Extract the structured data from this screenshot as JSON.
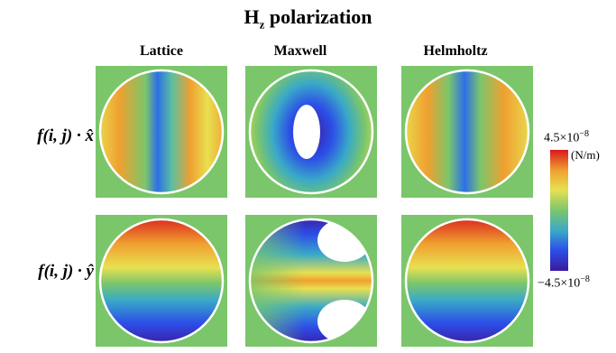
{
  "title_main": "H",
  "title_sub": "z",
  "title_rest": " polarization",
  "columns": [
    "Lattice",
    "Maxwell",
    "Helmholtz"
  ],
  "rows": [
    {
      "label": "f(i, j) · x̂"
    },
    {
      "label": "f(i, j) · ŷ"
    }
  ],
  "colorbar": {
    "max_base": "4.5×10",
    "max_exp": "−8",
    "min_base": "−4.5×10",
    "min_exp": "−8",
    "unit": "(N/m)",
    "colors": [
      "#d7191c",
      "#f0a030",
      "#e8e050",
      "#7bc66b",
      "#39a9c8",
      "#2c4fe8",
      "#3b1a9e"
    ]
  },
  "background_color": "#7bc66b"
}
